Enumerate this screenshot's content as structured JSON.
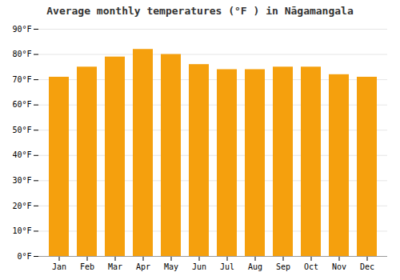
{
  "chart_data": {
    "type": "bar",
    "title": "Average monthly temperatures (°F ) in Nāgamangala",
    "categories": [
      "Jan",
      "Feb",
      "Mar",
      "Apr",
      "May",
      "Jun",
      "Jul",
      "Aug",
      "Sep",
      "Oct",
      "Nov",
      "Dec"
    ],
    "values": [
      71,
      75,
      79,
      82,
      80,
      76,
      74,
      74,
      75,
      75,
      72,
      71
    ],
    "color": "#F5A00D",
    "ylim": [
      0,
      90
    ],
    "yticks": [
      {
        "value": 0,
        "label": "0°F"
      },
      {
        "value": 10,
        "label": "10°F"
      },
      {
        "value": 20,
        "label": "20°F"
      },
      {
        "value": 30,
        "label": "30°F"
      },
      {
        "value": 40,
        "label": "40°F"
      },
      {
        "value": 50,
        "label": "50°F"
      },
      {
        "value": 60,
        "label": "60°F"
      },
      {
        "value": 70,
        "label": "70°F"
      },
      {
        "value": 80,
        "label": "80°F"
      },
      {
        "value": 90,
        "label": "90°F"
      }
    ],
    "grid": true
  }
}
